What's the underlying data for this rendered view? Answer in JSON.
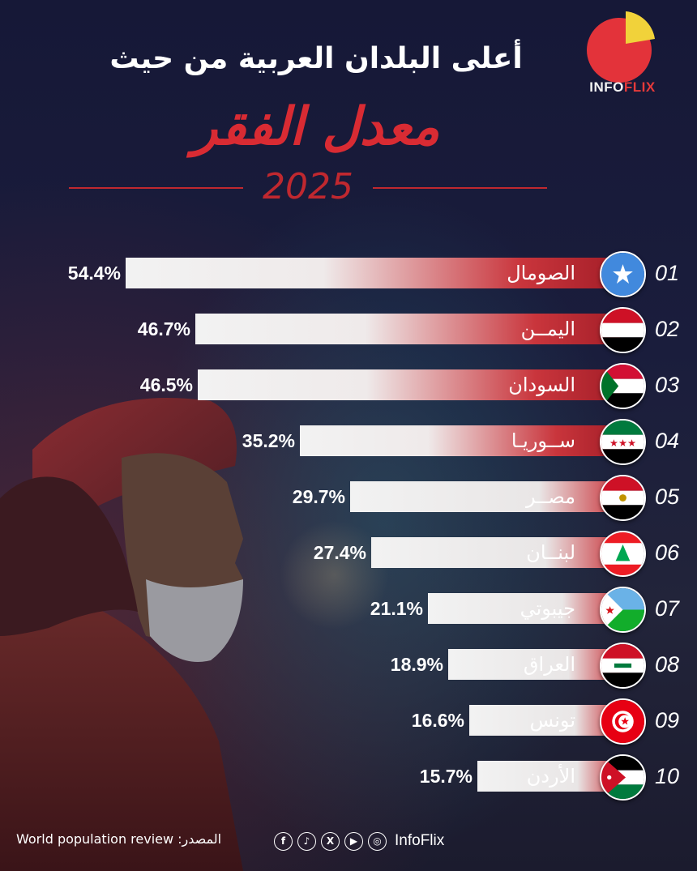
{
  "header": {
    "title_line1": "أعلى البلدان العربية من حيث",
    "title_line2": "معدل الفقر",
    "year": "2025"
  },
  "logo": {
    "text_info": "INFO",
    "text_flix": "FLIX"
  },
  "chart_data": {
    "type": "bar",
    "orientation": "horizontal",
    "categories": [
      "الصومال",
      "اليمــن",
      "السودان",
      "ســوريـا",
      "مصــر",
      "لبنــان",
      "جيبوتي",
      "العراق",
      "تونس",
      "الأردن"
    ],
    "ranks": [
      "01",
      "02",
      "03",
      "04",
      "05",
      "06",
      "07",
      "08",
      "09",
      "10"
    ],
    "values": [
      54.4,
      46.7,
      46.5,
      35.2,
      29.7,
      27.4,
      21.1,
      18.9,
      16.6,
      15.7
    ],
    "value_labels": [
      "54.4%",
      "46.7%",
      "46.5%",
      "35.2%",
      "29.7%",
      "27.4%",
      "21.1%",
      "18.9%",
      "16.6%",
      "15.7%"
    ],
    "unit": "%",
    "xlim": [
      0,
      54.4
    ]
  },
  "footer": {
    "source": "المصدر: World population review",
    "brand": "InfoFlix",
    "icons": [
      "facebook-icon",
      "tiktok-icon",
      "x-icon",
      "youtube-icon",
      "instagram-icon"
    ]
  },
  "colors": {
    "accent_red": "#d92b33",
    "bar_light": "#f2f2f2",
    "background": "#131531"
  }
}
